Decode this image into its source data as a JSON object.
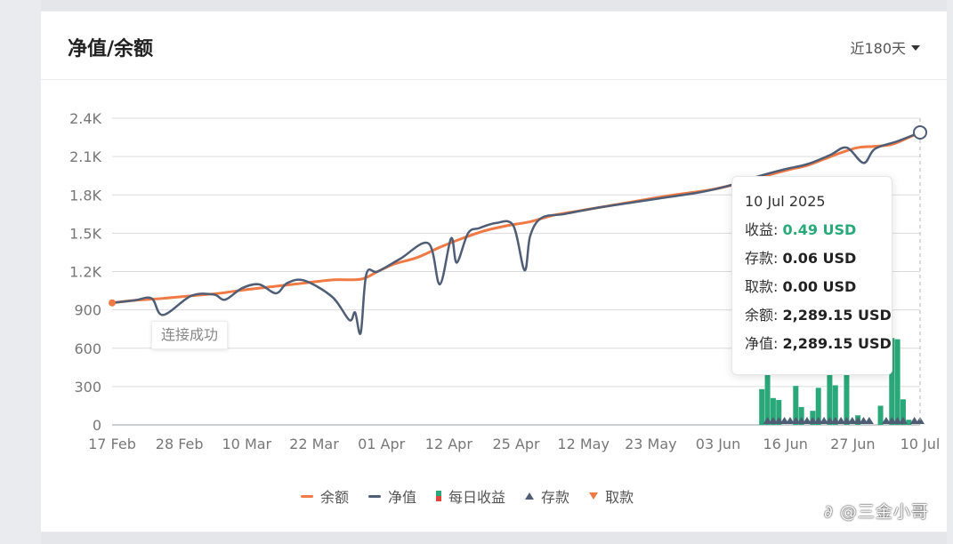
{
  "card": {
    "title": "净值/余额",
    "range_label": "近180天"
  },
  "toast": "连接成功",
  "tooltip": {
    "date": "10 Jul 2025",
    "rows": [
      {
        "label": "收益: ",
        "value": "0.49 USD"
      },
      {
        "label": "存款: ",
        "value": "0.06 USD"
      },
      {
        "label": "取款: ",
        "value": "0.00 USD"
      },
      {
        "label": "余额: ",
        "value": "2,289.15 USD"
      },
      {
        "label": "净值: ",
        "value": "2,289.15 USD"
      }
    ]
  },
  "legend": {
    "balance": "余额",
    "equity": "净值",
    "daily_profit": "每日收益",
    "deposit": "存款",
    "withdraw": "取款"
  },
  "watermark": "∂ @三金小哥",
  "colors": {
    "balance": "#f07a45",
    "equity": "#4f5d75",
    "profit_pos": "#2aa87a",
    "profit_neg": "#e0453a",
    "deposit": "#4f5d75",
    "withdraw": "#f07a45",
    "grid": "#d9dcdf"
  },
  "chart_data": {
    "type": "line",
    "title": "",
    "x_ticks": [
      "17 Feb",
      "28 Feb",
      "10 Mar",
      "22 Mar",
      "01 Apr",
      "12 Apr",
      "25 Apr",
      "12 May",
      "23 May",
      "03 Jun",
      "16 Jun",
      "27 Jun",
      "10 Jul"
    ],
    "y_ticks": [
      "0",
      "300",
      "600",
      "900",
      "1.2K",
      "1.5K",
      "1.8K",
      "2.1K",
      "2.4K"
    ],
    "ylim": [
      0,
      2400
    ],
    "series": [
      {
        "name": "余额",
        "x": [
          "2025-02-17",
          "2025-02-21",
          "2025-02-26",
          "2025-03-03",
          "2025-03-08",
          "2025-03-13",
          "2025-03-18",
          "2025-03-23",
          "2025-03-28",
          "2025-04-02",
          "2025-04-05",
          "2025-04-08",
          "2025-04-12",
          "2025-04-16",
          "2025-04-20",
          "2025-04-24",
          "2025-04-28",
          "2025-05-02",
          "2025-05-06",
          "2025-05-10",
          "2025-05-14",
          "2025-05-18",
          "2025-05-22",
          "2025-05-26",
          "2025-05-30",
          "2025-06-03",
          "2025-06-07",
          "2025-06-11",
          "2025-06-14",
          "2025-06-17",
          "2025-06-20",
          "2025-06-23",
          "2025-06-26",
          "2025-06-29",
          "2025-07-02",
          "2025-07-05",
          "2025-07-08",
          "2025-07-10"
        ],
        "values": [
          955,
          975,
          990,
          1010,
          1030,
          1060,
          1085,
          1110,
          1135,
          1140,
          1200,
          1260,
          1310,
          1390,
          1460,
          1520,
          1560,
          1590,
          1640,
          1670,
          1700,
          1730,
          1760,
          1790,
          1815,
          1840,
          1880,
          1930,
          1965,
          2000,
          2030,
          2080,
          2130,
          2170,
          2180,
          2195,
          2250,
          2289
        ]
      },
      {
        "name": "净值",
        "x": [
          "2025-02-17",
          "2025-02-21",
          "2025-02-24",
          "2025-02-26",
          "2025-03-03",
          "2025-03-07",
          "2025-03-09",
          "2025-03-12",
          "2025-03-15",
          "2025-03-18",
          "2025-03-20",
          "2025-03-23",
          "2025-03-28",
          "2025-03-31",
          "2025-04-01",
          "2025-04-02",
          "2025-04-03",
          "2025-04-05",
          "2025-04-09",
          "2025-04-14",
          "2025-04-16",
          "2025-04-18",
          "2025-04-19",
          "2025-04-21",
          "2025-04-23",
          "2025-04-26",
          "2025-04-29",
          "2025-05-01",
          "2025-05-02",
          "2025-05-04",
          "2025-05-08",
          "2025-05-14",
          "2025-05-20",
          "2025-05-26",
          "2025-06-01",
          "2025-06-06",
          "2025-06-11",
          "2025-06-16",
          "2025-06-20",
          "2025-06-24",
          "2025-06-27",
          "2025-06-30",
          "2025-07-02",
          "2025-07-06",
          "2025-07-10"
        ],
        "values": [
          955,
          975,
          990,
          860,
          1010,
          1020,
          980,
          1070,
          1100,
          1030,
          1110,
          1130,
          1000,
          820,
          880,
          720,
          1180,
          1200,
          1300,
          1420,
          1100,
          1460,
          1270,
          1500,
          1540,
          1580,
          1560,
          1210,
          1480,
          1620,
          1650,
          1700,
          1740,
          1780,
          1820,
          1870,
          1940,
          2000,
          2040,
          2110,
          2170,
          2050,
          2160,
          2220,
          2289
        ]
      },
      {
        "name": "每日收益",
        "type": "bar",
        "x": [
          "2025-06-12",
          "2025-06-13",
          "2025-06-14",
          "2025-06-15",
          "2025-06-18",
          "2025-06-19",
          "2025-06-21",
          "2025-06-22",
          "2025-06-24",
          "2025-06-25",
          "2025-06-27",
          "2025-06-29",
          "2025-07-03",
          "2025-07-05",
          "2025-07-06",
          "2025-07-07",
          "2025-07-08"
        ],
        "values": [
          280,
          760,
          210,
          195,
          305,
          140,
          110,
          290,
          760,
          310,
          770,
          75,
          150,
          680,
          670,
          200,
          40
        ]
      },
      {
        "name": "存款",
        "type": "marker",
        "x": [
          "2025-06-13",
          "2025-06-14",
          "2025-06-15",
          "2025-06-16",
          "2025-06-17",
          "2025-06-18",
          "2025-06-19",
          "2025-06-20",
          "2025-06-21",
          "2025-06-22",
          "2025-06-23",
          "2025-06-24",
          "2025-06-25",
          "2025-06-26",
          "2025-06-27",
          "2025-06-28",
          "2025-06-29",
          "2025-06-30",
          "2025-07-01",
          "2025-07-04",
          "2025-07-05",
          "2025-07-06",
          "2025-07-07",
          "2025-07-09",
          "2025-07-10"
        ],
        "values": [
          0.06,
          0.06,
          0.06,
          0.06,
          0.06,
          0.06,
          0.06,
          0.06,
          0.06,
          0.06,
          0.06,
          0.06,
          0.06,
          0.06,
          0.06,
          0.06,
          0.06,
          0.06,
          0.06,
          0.06,
          0.06,
          0.06,
          0.06,
          0.06,
          0.06
        ]
      }
    ]
  }
}
